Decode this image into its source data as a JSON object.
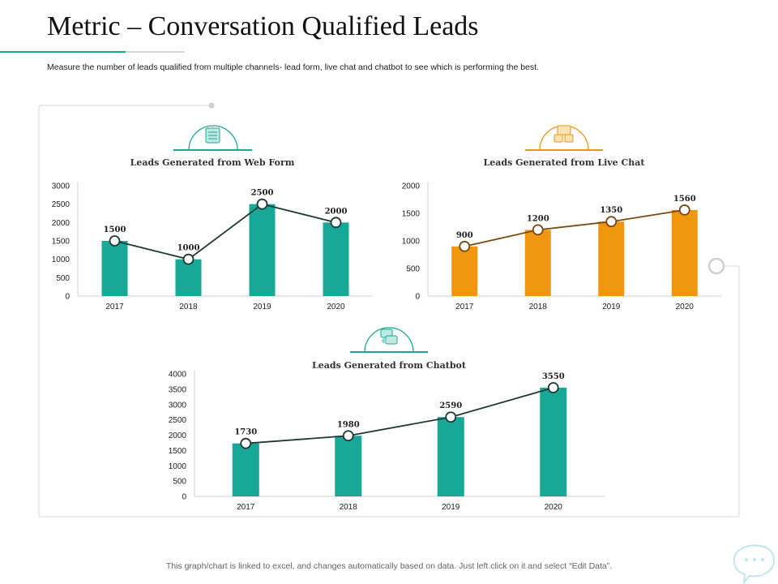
{
  "page": {
    "title": "Metric – Conversation Qualified Leads",
    "subtitle": "Measure the number of leads qualified from multiple channels- lead form, live chat and chatbot to see which is performing the best.",
    "footer": "This graph/chart is linked to excel, and changes automatically based on data. Just left click on it and select “Edit Data”."
  },
  "colors": {
    "teal": "#17a898",
    "orange": "#f0960f",
    "teal_line": "#1f3a36",
    "orange_line": "#7a4a10",
    "axis": "#d0d0d0",
    "frame": "#d8d8d8"
  },
  "icons": {
    "web_form": "web-form-icon",
    "live_chat": "live-chat-icon",
    "chatbot": "chatbot-icon",
    "speech": "speech-bubble-icon"
  },
  "chart_data": [
    {
      "id": "web-form",
      "type": "bar",
      "title": "Leads Generated from Web Form",
      "categories": [
        "2017",
        "2018",
        "2019",
        "2020"
      ],
      "values": [
        1500,
        1000,
        2500,
        2000
      ],
      "overlay": "line",
      "ylim": [
        0,
        3000
      ],
      "yticks": [
        0,
        500,
        1000,
        1500,
        2000,
        2500,
        3000
      ],
      "xlabel": "",
      "ylabel": "",
      "color_key": "teal",
      "line_color_key": "teal_line"
    },
    {
      "id": "live-chat",
      "type": "bar",
      "title": "Leads Generated from Live Chat",
      "categories": [
        "2017",
        "2018",
        "2019",
        "2020"
      ],
      "values": [
        900,
        1200,
        1350,
        1560
      ],
      "overlay": "line",
      "ylim": [
        0,
        2000
      ],
      "yticks": [
        0,
        500,
        1000,
        1500,
        2000
      ],
      "xlabel": "",
      "ylabel": "",
      "color_key": "orange",
      "line_color_key": "orange_line"
    },
    {
      "id": "chatbot",
      "type": "bar",
      "title": "Leads Generated from Chatbot",
      "categories": [
        "2017",
        "2018",
        "2019",
        "2020"
      ],
      "values": [
        1730,
        1980,
        2590,
        3550
      ],
      "overlay": "line",
      "ylim": [
        0,
        4000
      ],
      "yticks": [
        0,
        500,
        1000,
        1500,
        2000,
        2500,
        3000,
        3500,
        4000
      ],
      "xlabel": "",
      "ylabel": "",
      "color_key": "teal",
      "line_color_key": "teal_line"
    }
  ]
}
